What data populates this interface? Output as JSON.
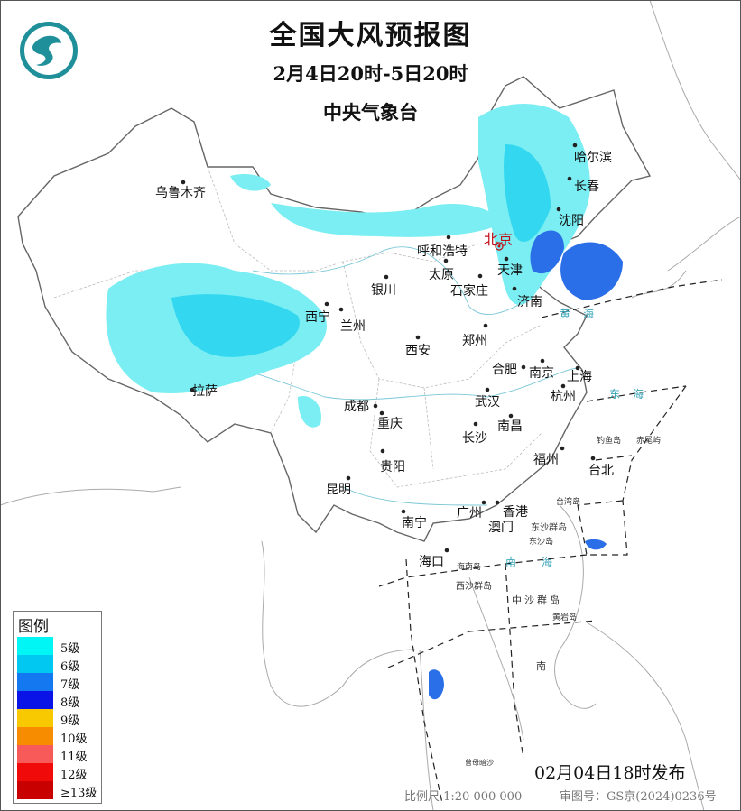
{
  "header": {
    "title": "全国大风预报图",
    "period": "2月4日20时-5日20时",
    "issuer": "中央气象台"
  },
  "logo": {
    "icon": "cma-logo-icon",
    "color": "#1f8f9a"
  },
  "cities": {
    "urumqi": "乌鲁木齐",
    "harbin": "哈尔滨",
    "changchun": "长春",
    "shenyang": "沈阳",
    "beijing": "北京",
    "hohhot": "呼和浩特",
    "tianjin": "天津",
    "taiyuan": "太原",
    "shijiazhuang": "石家庄",
    "yinchuan": "银川",
    "jinan": "济南",
    "xining": "西宁",
    "lanzhou": "兰州",
    "zhengzhou": "郑州",
    "xian": "西安",
    "hefei": "合肥",
    "nanjing": "南京",
    "shanghai": "上海",
    "hangzhou": "杭州",
    "lhasa": "拉萨",
    "chengdu": "成都",
    "wuhan": "武汉",
    "chongqing": "重庆",
    "nanchang": "南昌",
    "changsha": "长沙",
    "fuzhou": "福州",
    "taipei": "台北",
    "guiyang": "贵阳",
    "kunming": "昆明",
    "guangzhou": "广州",
    "hongkong": "香港",
    "macau": "澳门",
    "nanning": "南宁",
    "haikou": "海口"
  },
  "seas": {
    "yellow": "黄海",
    "east": "东海",
    "south_1": "南",
    "south_2": "海",
    "south_lower": "南"
  },
  "islands": {
    "dongsha_group": "东沙群岛",
    "dongsha": "东沙岛",
    "hainan": "海南岛",
    "xisha": "西沙群岛",
    "zhongsha": "中沙群岛",
    "huangyan": "黄岩岛",
    "diaoyu": "钓鱼岛",
    "chiwei": "赤尾屿",
    "taiwan": "台湾岛",
    "zengmu": "曾母暗沙"
  },
  "legend": {
    "title": "图例",
    "items": [
      {
        "label": "5级",
        "color": "#00f5f5"
      },
      {
        "label": "6级",
        "color": "#00c8f0"
      },
      {
        "label": "7级",
        "color": "#1478f0"
      },
      {
        "label": "8级",
        "color": "#0a14e6"
      },
      {
        "label": "9级",
        "color": "#f8c800"
      },
      {
        "label": "10级",
        "color": "#f88c00"
      },
      {
        "label": "11级",
        "color": "#f85a5a"
      },
      {
        "label": "12级",
        "color": "#f00a0a"
      },
      {
        "label": "≥13级",
        "color": "#c80000"
      }
    ]
  },
  "footer": {
    "issue_time": "02月04日18时发布",
    "scale": "比例尺 1:20 000 000",
    "review_no": "审图号：GS京(2024)0236号"
  }
}
